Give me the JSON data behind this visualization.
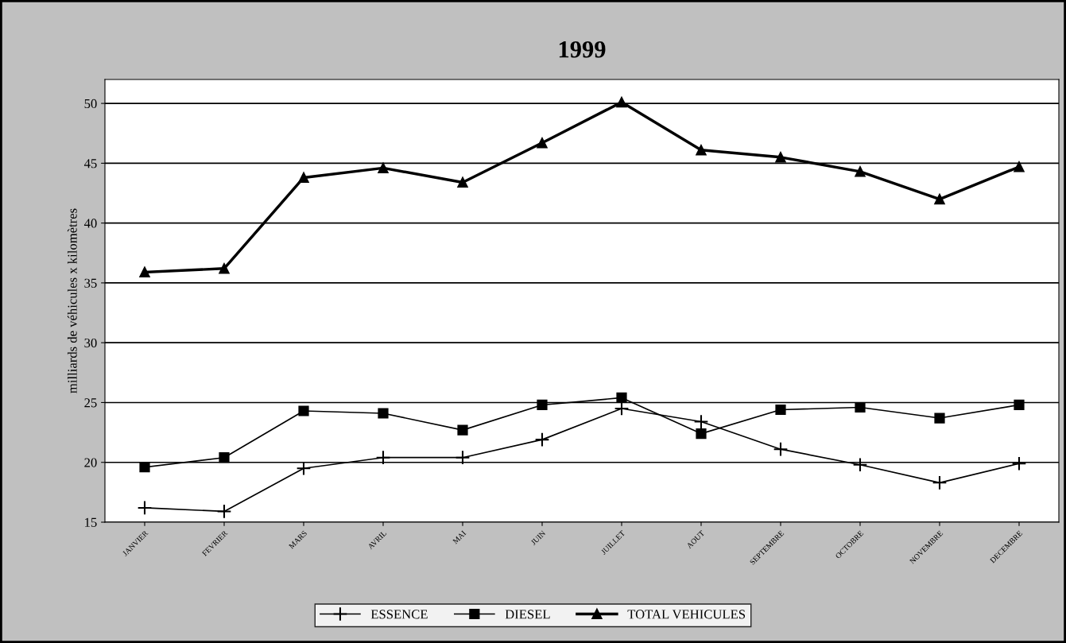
{
  "chart_data": {
    "type": "line",
    "title": "1999",
    "ylabel": "milliards de véhicules x kilomètres",
    "categories": [
      "JANVIER",
      "FEVRIER",
      "MARS",
      "AVRIL",
      "MAI",
      "JUIN",
      "JUILLET",
      "AOUT",
      "SEPTEMBRE",
      "OCTOBRE",
      "NOVEMBRE",
      "DECEMBRE"
    ],
    "series": [
      {
        "name": "ESSENCE",
        "color": "#000000",
        "marker": "cross",
        "values": [
          16.2,
          15.9,
          19.5,
          20.4,
          20.4,
          21.9,
          24.5,
          23.4,
          21.1,
          19.8,
          18.3,
          19.9
        ]
      },
      {
        "name": "DIESEL",
        "color": "#000000",
        "marker": "square",
        "values": [
          19.6,
          20.4,
          24.3,
          24.1,
          22.7,
          24.8,
          25.4,
          22.4,
          24.4,
          24.6,
          23.7,
          24.8
        ]
      },
      {
        "name": "TOTAL VEHICULES",
        "color": "#000000",
        "marker": "triangle",
        "values": [
          35.9,
          36.2,
          43.8,
          44.6,
          43.4,
          46.7,
          50.1,
          46.1,
          45.5,
          44.3,
          42.0,
          44.7
        ]
      }
    ],
    "ylim": [
      15,
      52
    ],
    "yticks": [
      15,
      20,
      25,
      30,
      35,
      40,
      45,
      50
    ],
    "grid": "y",
    "legend": "bottom",
    "line_style": "solid"
  }
}
